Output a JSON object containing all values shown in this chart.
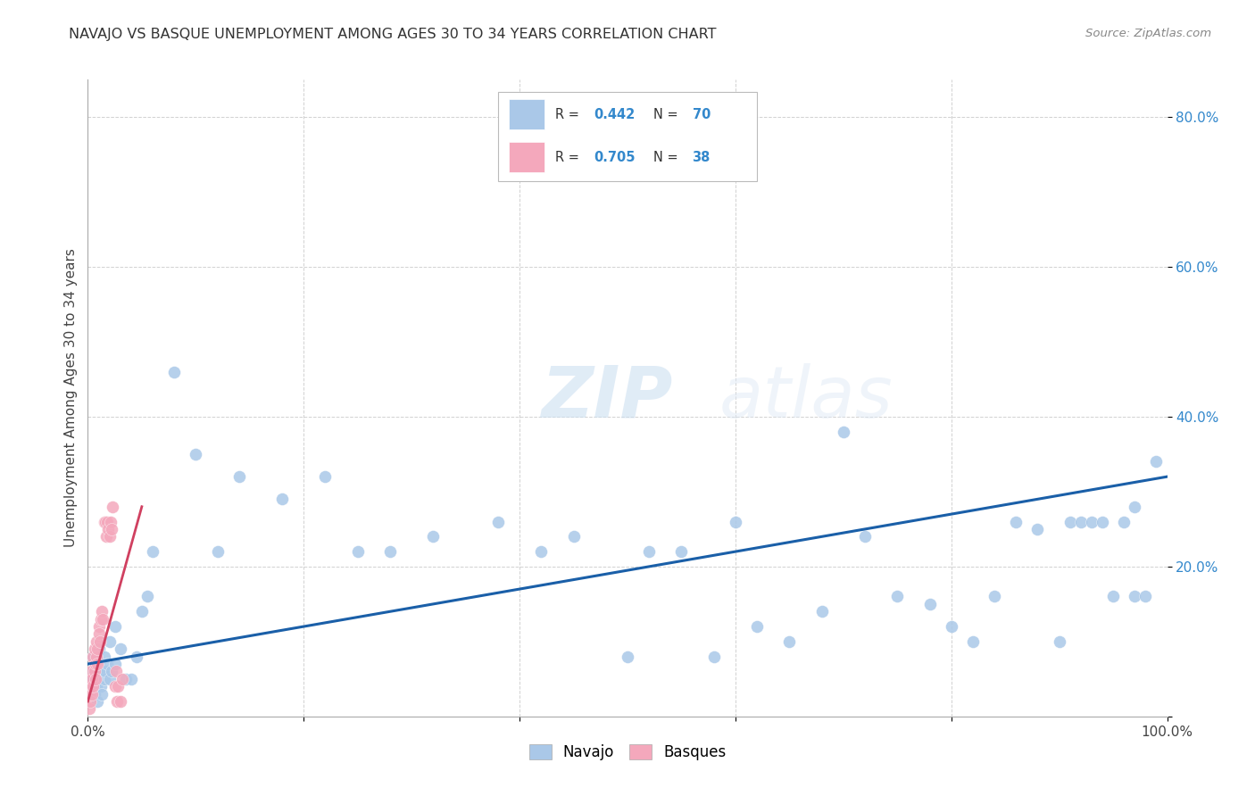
{
  "title": "NAVAJO VS BASQUE UNEMPLOYMENT AMONG AGES 30 TO 34 YEARS CORRELATION CHART",
  "source": "Source: ZipAtlas.com",
  "ylabel": "Unemployment Among Ages 30 to 34 years",
  "xlim": [
    0.0,
    1.0
  ],
  "ylim": [
    0.0,
    0.85
  ],
  "xticks": [
    0.0,
    0.2,
    0.4,
    0.6,
    0.8,
    1.0
  ],
  "xticklabels": [
    "0.0%",
    "",
    "",
    "",
    "",
    "100.0%"
  ],
  "yticks": [
    0.0,
    0.2,
    0.4,
    0.6,
    0.8
  ],
  "yticklabels": [
    "",
    "20.0%",
    "40.0%",
    "60.0%",
    "80.0%"
  ],
  "navajo_color": "#aac8e8",
  "basque_color": "#f4a8bc",
  "navajo_line_color": "#1a5fa8",
  "basque_line_color": "#d04060",
  "navajo_R": 0.442,
  "navajo_N": 70,
  "basque_R": 0.705,
  "basque_N": 38,
  "watermark_zip": "ZIP",
  "watermark_atlas": "atlas",
  "navajo_x": [
    0.002,
    0.003,
    0.004,
    0.005,
    0.005,
    0.006,
    0.007,
    0.008,
    0.008,
    0.009,
    0.01,
    0.01,
    0.012,
    0.013,
    0.015,
    0.015,
    0.016,
    0.018,
    0.02,
    0.02,
    0.022,
    0.025,
    0.025,
    0.03,
    0.035,
    0.04,
    0.045,
    0.05,
    0.055,
    0.06,
    0.08,
    0.1,
    0.12,
    0.14,
    0.18,
    0.22,
    0.25,
    0.28,
    0.32,
    0.38,
    0.42,
    0.45,
    0.5,
    0.52,
    0.55,
    0.58,
    0.6,
    0.62,
    0.65,
    0.68,
    0.7,
    0.72,
    0.75,
    0.78,
    0.8,
    0.82,
    0.84,
    0.86,
    0.88,
    0.9,
    0.91,
    0.92,
    0.93,
    0.94,
    0.95,
    0.96,
    0.97,
    0.97,
    0.98,
    0.99
  ],
  "navajo_y": [
    0.05,
    0.04,
    0.03,
    0.06,
    0.08,
    0.03,
    0.05,
    0.04,
    0.07,
    0.02,
    0.06,
    0.09,
    0.04,
    0.03,
    0.05,
    0.08,
    0.06,
    0.07,
    0.05,
    0.1,
    0.06,
    0.12,
    0.07,
    0.09,
    0.05,
    0.05,
    0.08,
    0.14,
    0.16,
    0.22,
    0.46,
    0.35,
    0.22,
    0.32,
    0.29,
    0.32,
    0.22,
    0.22,
    0.24,
    0.26,
    0.22,
    0.24,
    0.08,
    0.22,
    0.22,
    0.08,
    0.26,
    0.12,
    0.1,
    0.14,
    0.38,
    0.24,
    0.16,
    0.15,
    0.12,
    0.1,
    0.16,
    0.26,
    0.25,
    0.1,
    0.26,
    0.26,
    0.26,
    0.26,
    0.16,
    0.26,
    0.16,
    0.28,
    0.16,
    0.34
  ],
  "basque_x": [
    0.001,
    0.002,
    0.002,
    0.003,
    0.003,
    0.004,
    0.004,
    0.005,
    0.005,
    0.006,
    0.006,
    0.007,
    0.007,
    0.008,
    0.008,
    0.009,
    0.009,
    0.01,
    0.01,
    0.011,
    0.012,
    0.013,
    0.014,
    0.015,
    0.016,
    0.017,
    0.018,
    0.019,
    0.02,
    0.021,
    0.022,
    0.023,
    0.025,
    0.026,
    0.027,
    0.028,
    0.03,
    0.032
  ],
  "basque_y": [
    0.01,
    0.03,
    0.02,
    0.04,
    0.06,
    0.03,
    0.05,
    0.08,
    0.04,
    0.06,
    0.09,
    0.05,
    0.07,
    0.1,
    0.08,
    0.07,
    0.09,
    0.12,
    0.11,
    0.1,
    0.13,
    0.14,
    0.13,
    0.26,
    0.26,
    0.24,
    0.26,
    0.25,
    0.24,
    0.26,
    0.25,
    0.28,
    0.04,
    0.06,
    0.02,
    0.04,
    0.02,
    0.05
  ],
  "navajo_trendline_x": [
    0.0,
    1.0
  ],
  "navajo_trendline_y": [
    0.07,
    0.32
  ],
  "basque_trendline_x": [
    0.0,
    0.05
  ],
  "basque_trendline_y": [
    0.02,
    0.28
  ]
}
